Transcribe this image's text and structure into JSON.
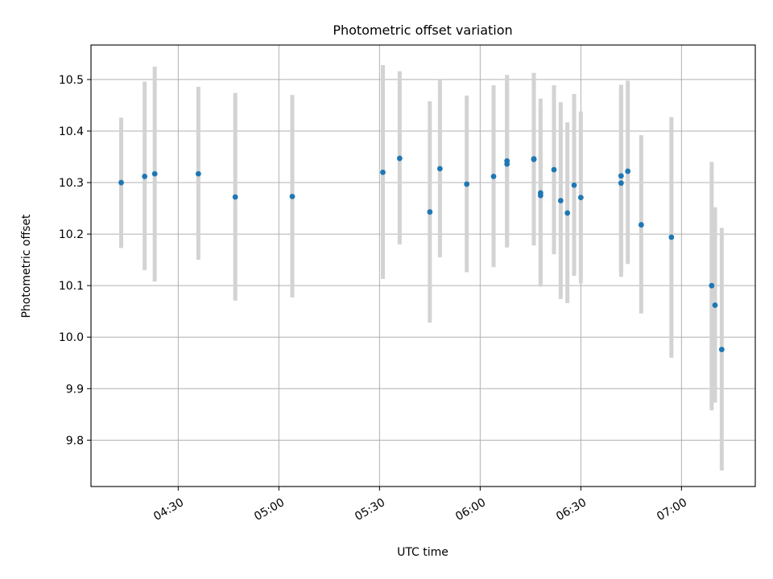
{
  "chart_data": {
    "type": "scatter",
    "title": "Photometric offset variation",
    "xlabel": "UTC time",
    "ylabel": "Photometric offset",
    "x_ticks": [
      "04:30",
      "05:00",
      "05:30",
      "06:00",
      "06:30",
      "07:00"
    ],
    "y_ticks": [
      "9.8",
      "9.9",
      "10.0",
      "10.1",
      "10.2",
      "10.3",
      "10.4",
      "10.5"
    ],
    "xlim": [
      "04:04",
      "07:22"
    ],
    "ylim": [
      9.71,
      10.567
    ],
    "grid": true,
    "point_color": "#1f77b4",
    "errorbar_color": "#d3d3d3",
    "points": [
      {
        "x": "04:13",
        "y": 10.3,
        "low": 10.173,
        "high": 10.426
      },
      {
        "x": "04:20",
        "y": 10.312,
        "low": 10.13,
        "high": 10.496
      },
      {
        "x": "04:23",
        "y": 10.317,
        "low": 10.108,
        "high": 10.525
      },
      {
        "x": "04:36",
        "y": 10.317,
        "low": 10.15,
        "high": 10.486
      },
      {
        "x": "04:47",
        "y": 10.272,
        "low": 10.071,
        "high": 10.474
      },
      {
        "x": "05:04",
        "y": 10.273,
        "low": 10.077,
        "high": 10.47
      },
      {
        "x": "05:31",
        "y": 10.32,
        "low": 10.113,
        "high": 10.528
      },
      {
        "x": "05:36",
        "y": 10.347,
        "low": 10.18,
        "high": 10.516
      },
      {
        "x": "05:45",
        "y": 10.243,
        "low": 10.028,
        "high": 10.458
      },
      {
        "x": "05:48",
        "y": 10.327,
        "low": 10.155,
        "high": 10.5
      },
      {
        "x": "05:56",
        "y": 10.297,
        "low": 10.126,
        "high": 10.469
      },
      {
        "x": "06:04",
        "y": 10.312,
        "low": 10.136,
        "high": 10.489
      },
      {
        "x": "06:08",
        "y": 10.336,
        "low": 10.174,
        "high": 10.505
      },
      {
        "x": "06:08",
        "y": 10.342,
        "low": 10.177,
        "high": 10.509
      },
      {
        "x": "06:16",
        "y": 10.345,
        "low": 10.178,
        "high": 10.513
      },
      {
        "x": "06:16",
        "y": 10.346,
        "low": 10.26,
        "high": 10.446
      },
      {
        "x": "06:18",
        "y": 10.275,
        "low": 10.098,
        "high": 10.446
      },
      {
        "x": "06:18",
        "y": 10.28,
        "low": 10.098,
        "high": 10.463
      },
      {
        "x": "06:22",
        "y": 10.325,
        "low": 10.161,
        "high": 10.489
      },
      {
        "x": "06:24",
        "y": 10.265,
        "low": 10.074,
        "high": 10.456
      },
      {
        "x": "06:26",
        "y": 10.241,
        "low": 10.066,
        "high": 10.417
      },
      {
        "x": "06:28",
        "y": 10.295,
        "low": 10.119,
        "high": 10.472
      },
      {
        "x": "06:30",
        "y": 10.271,
        "low": 10.104,
        "high": 10.438
      },
      {
        "x": "06:42",
        "y": 10.299,
        "low": 10.117,
        "high": 10.481
      },
      {
        "x": "06:42",
        "y": 10.313,
        "low": 10.128,
        "high": 10.49
      },
      {
        "x": "06:44",
        "y": 10.322,
        "low": 10.142,
        "high": 10.498
      },
      {
        "x": "06:48",
        "y": 10.218,
        "low": 10.046,
        "high": 10.392
      },
      {
        "x": "06:57",
        "y": 10.194,
        "low": 9.96,
        "high": 10.427
      },
      {
        "x": "07:09",
        "y": 10.1,
        "low": 9.858,
        "high": 10.34
      },
      {
        "x": "07:10",
        "y": 10.062,
        "low": 9.873,
        "high": 10.252
      },
      {
        "x": "07:12",
        "y": 9.976,
        "low": 9.741,
        "high": 10.212
      }
    ]
  }
}
